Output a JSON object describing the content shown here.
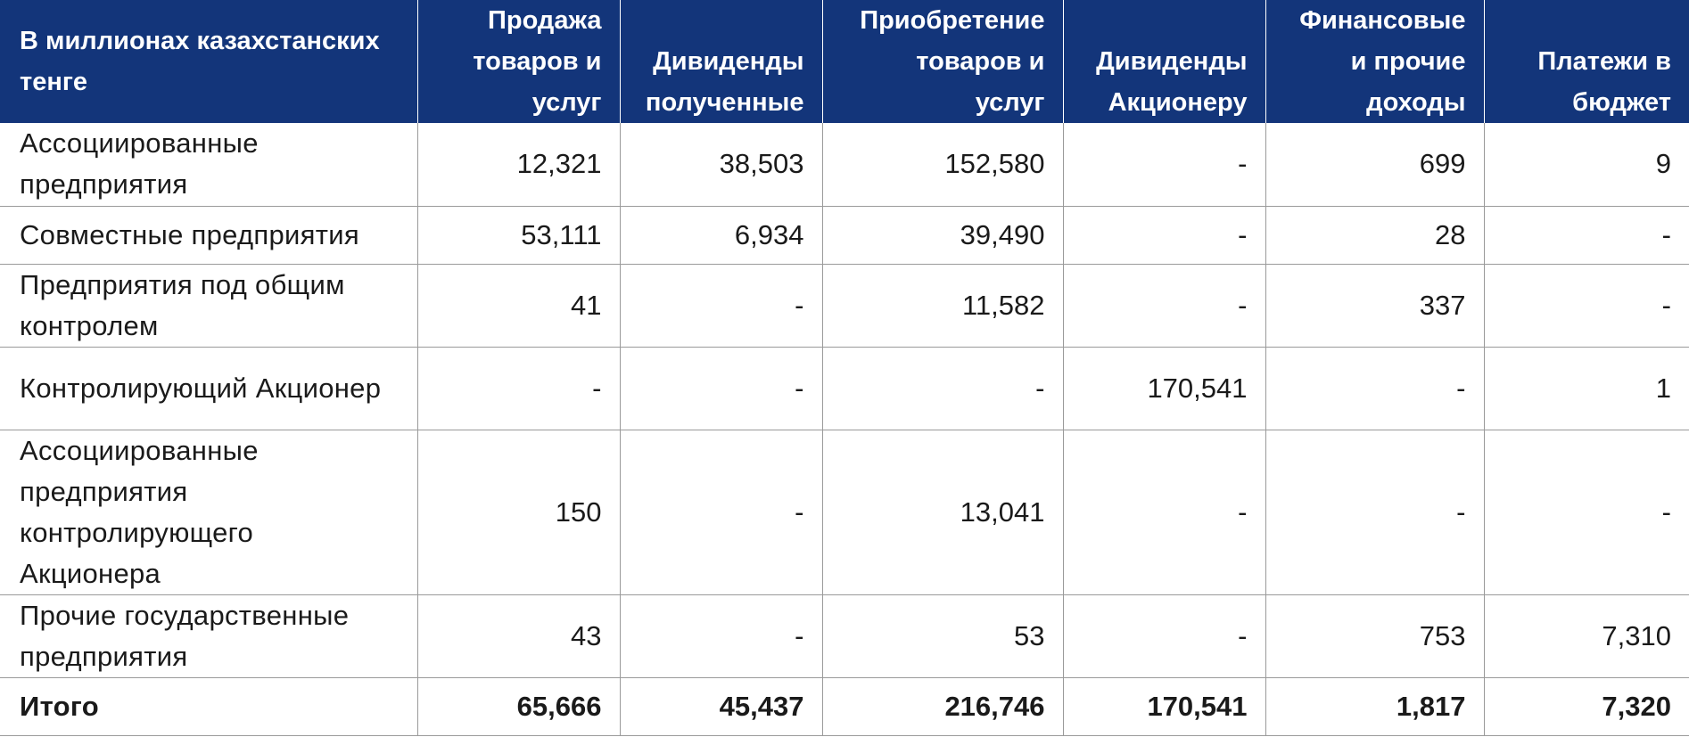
{
  "table": {
    "headers": [
      "В миллионах казахстанских тенге",
      "Продажа товаров и услуг",
      "Дивиденды полученные",
      "Приобретение товаров и услуг",
      "Дивиденды Акционеру",
      "Финансовые и прочие доходы",
      "Платежи в бюджет"
    ],
    "rows": [
      [
        "Ассоциированные предприятия",
        "12,321",
        "38,503",
        "152,580",
        "-",
        "699",
        "9"
      ],
      [
        "Совместные предприятия",
        "53,111",
        "6,934",
        "39,490",
        "-",
        "28",
        "-"
      ],
      [
        "Предприятия под общим контролем",
        "41",
        "-",
        "11,582",
        "-",
        "337",
        "-"
      ],
      [
        "Контролирующий Акционер",
        "-",
        "-",
        "-",
        "170,541",
        "-",
        "1"
      ],
      [
        "Ассоциированные предприятия контролирующего Акционера",
        "150",
        "-",
        "13,041",
        "-",
        "-",
        "-"
      ],
      [
        "Прочие государственные предприятия",
        "43",
        "-",
        "53",
        "-",
        "753",
        "7,310"
      ]
    ],
    "total": [
      "Итого",
      "65,666",
      "45,437",
      "216,746",
      "170,541",
      "1,817",
      "7,320"
    ]
  }
}
